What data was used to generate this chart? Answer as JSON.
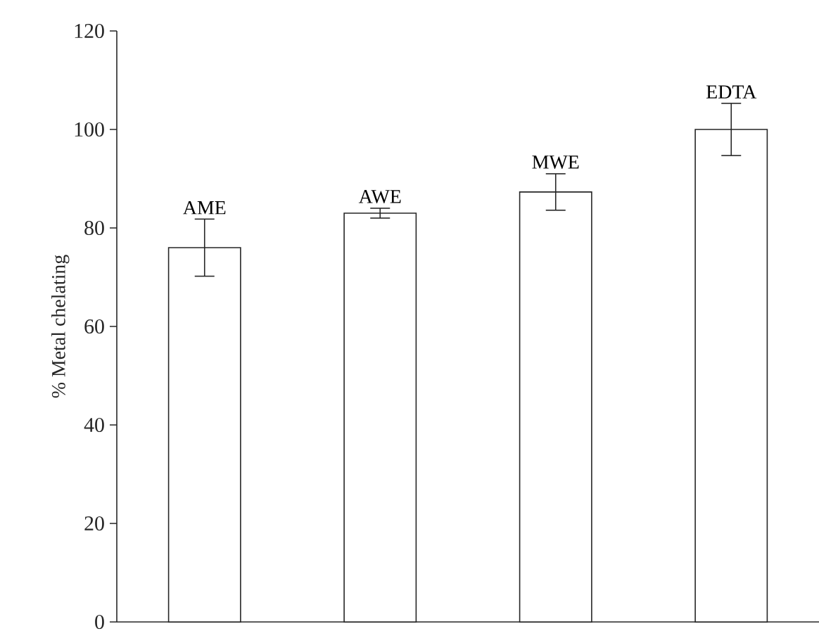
{
  "chart_data": {
    "type": "bar",
    "ylabel": "% Metal chelating",
    "categories": [
      "AME",
      "AWE",
      "MWE",
      "EDTA"
    ],
    "values": [
      76,
      83,
      87.3,
      100
    ],
    "errors": [
      5.8,
      1,
      3.7,
      5.3
    ],
    "color": "#ffffff",
    "ylim": [
      0,
      120
    ],
    "yticks": [
      0,
      20,
      40,
      60,
      80,
      100,
      120
    ],
    "grid": false
  }
}
